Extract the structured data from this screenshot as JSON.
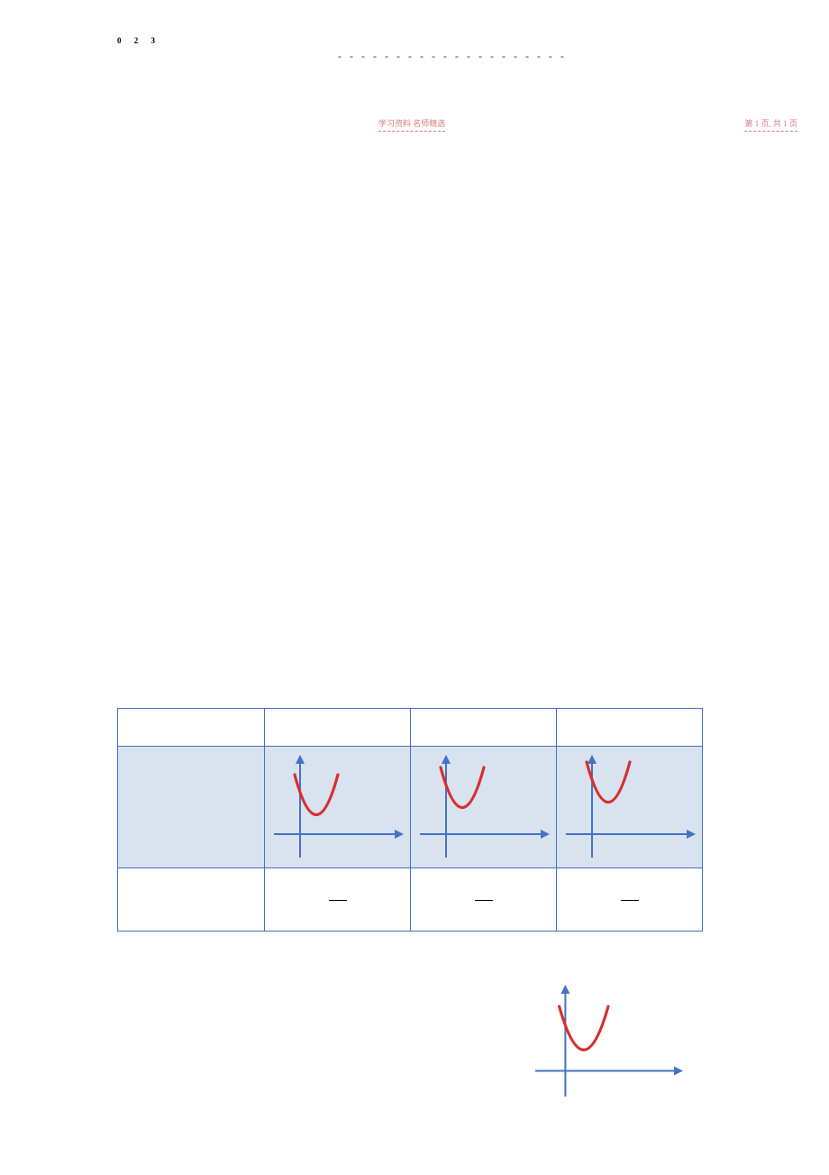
{
  "header": {
    "top_numbers": "0  2  3",
    "top_dashes": "- - - - - - - - - - - - - - - - - - - -",
    "watermark_left": "学习资料   名师精选",
    "watermark_right": "第 1 页, 共 1 页"
  },
  "table": {
    "border_color": "#4472c4",
    "header_bg": "#ffffff",
    "graph_bg": "#d9e2ef",
    "dash_bg": "#ffffff",
    "dash_symbol": "—",
    "columns": 4,
    "cell_graphs": [
      {
        "curve_shift": 0,
        "axis_color": "#4472c4",
        "curve_color": "#d62f2f"
      },
      {
        "curve_shift": -8,
        "axis_color": "#4472c4",
        "curve_color": "#d62f2f"
      },
      {
        "curve_shift": -14,
        "axis_color": "#4472c4",
        "curve_color": "#d62f2f"
      }
    ]
  },
  "bottom_graph": {
    "axis_color": "#4472c4",
    "curve_color": "#d62f2f",
    "curve_shift": 0
  }
}
